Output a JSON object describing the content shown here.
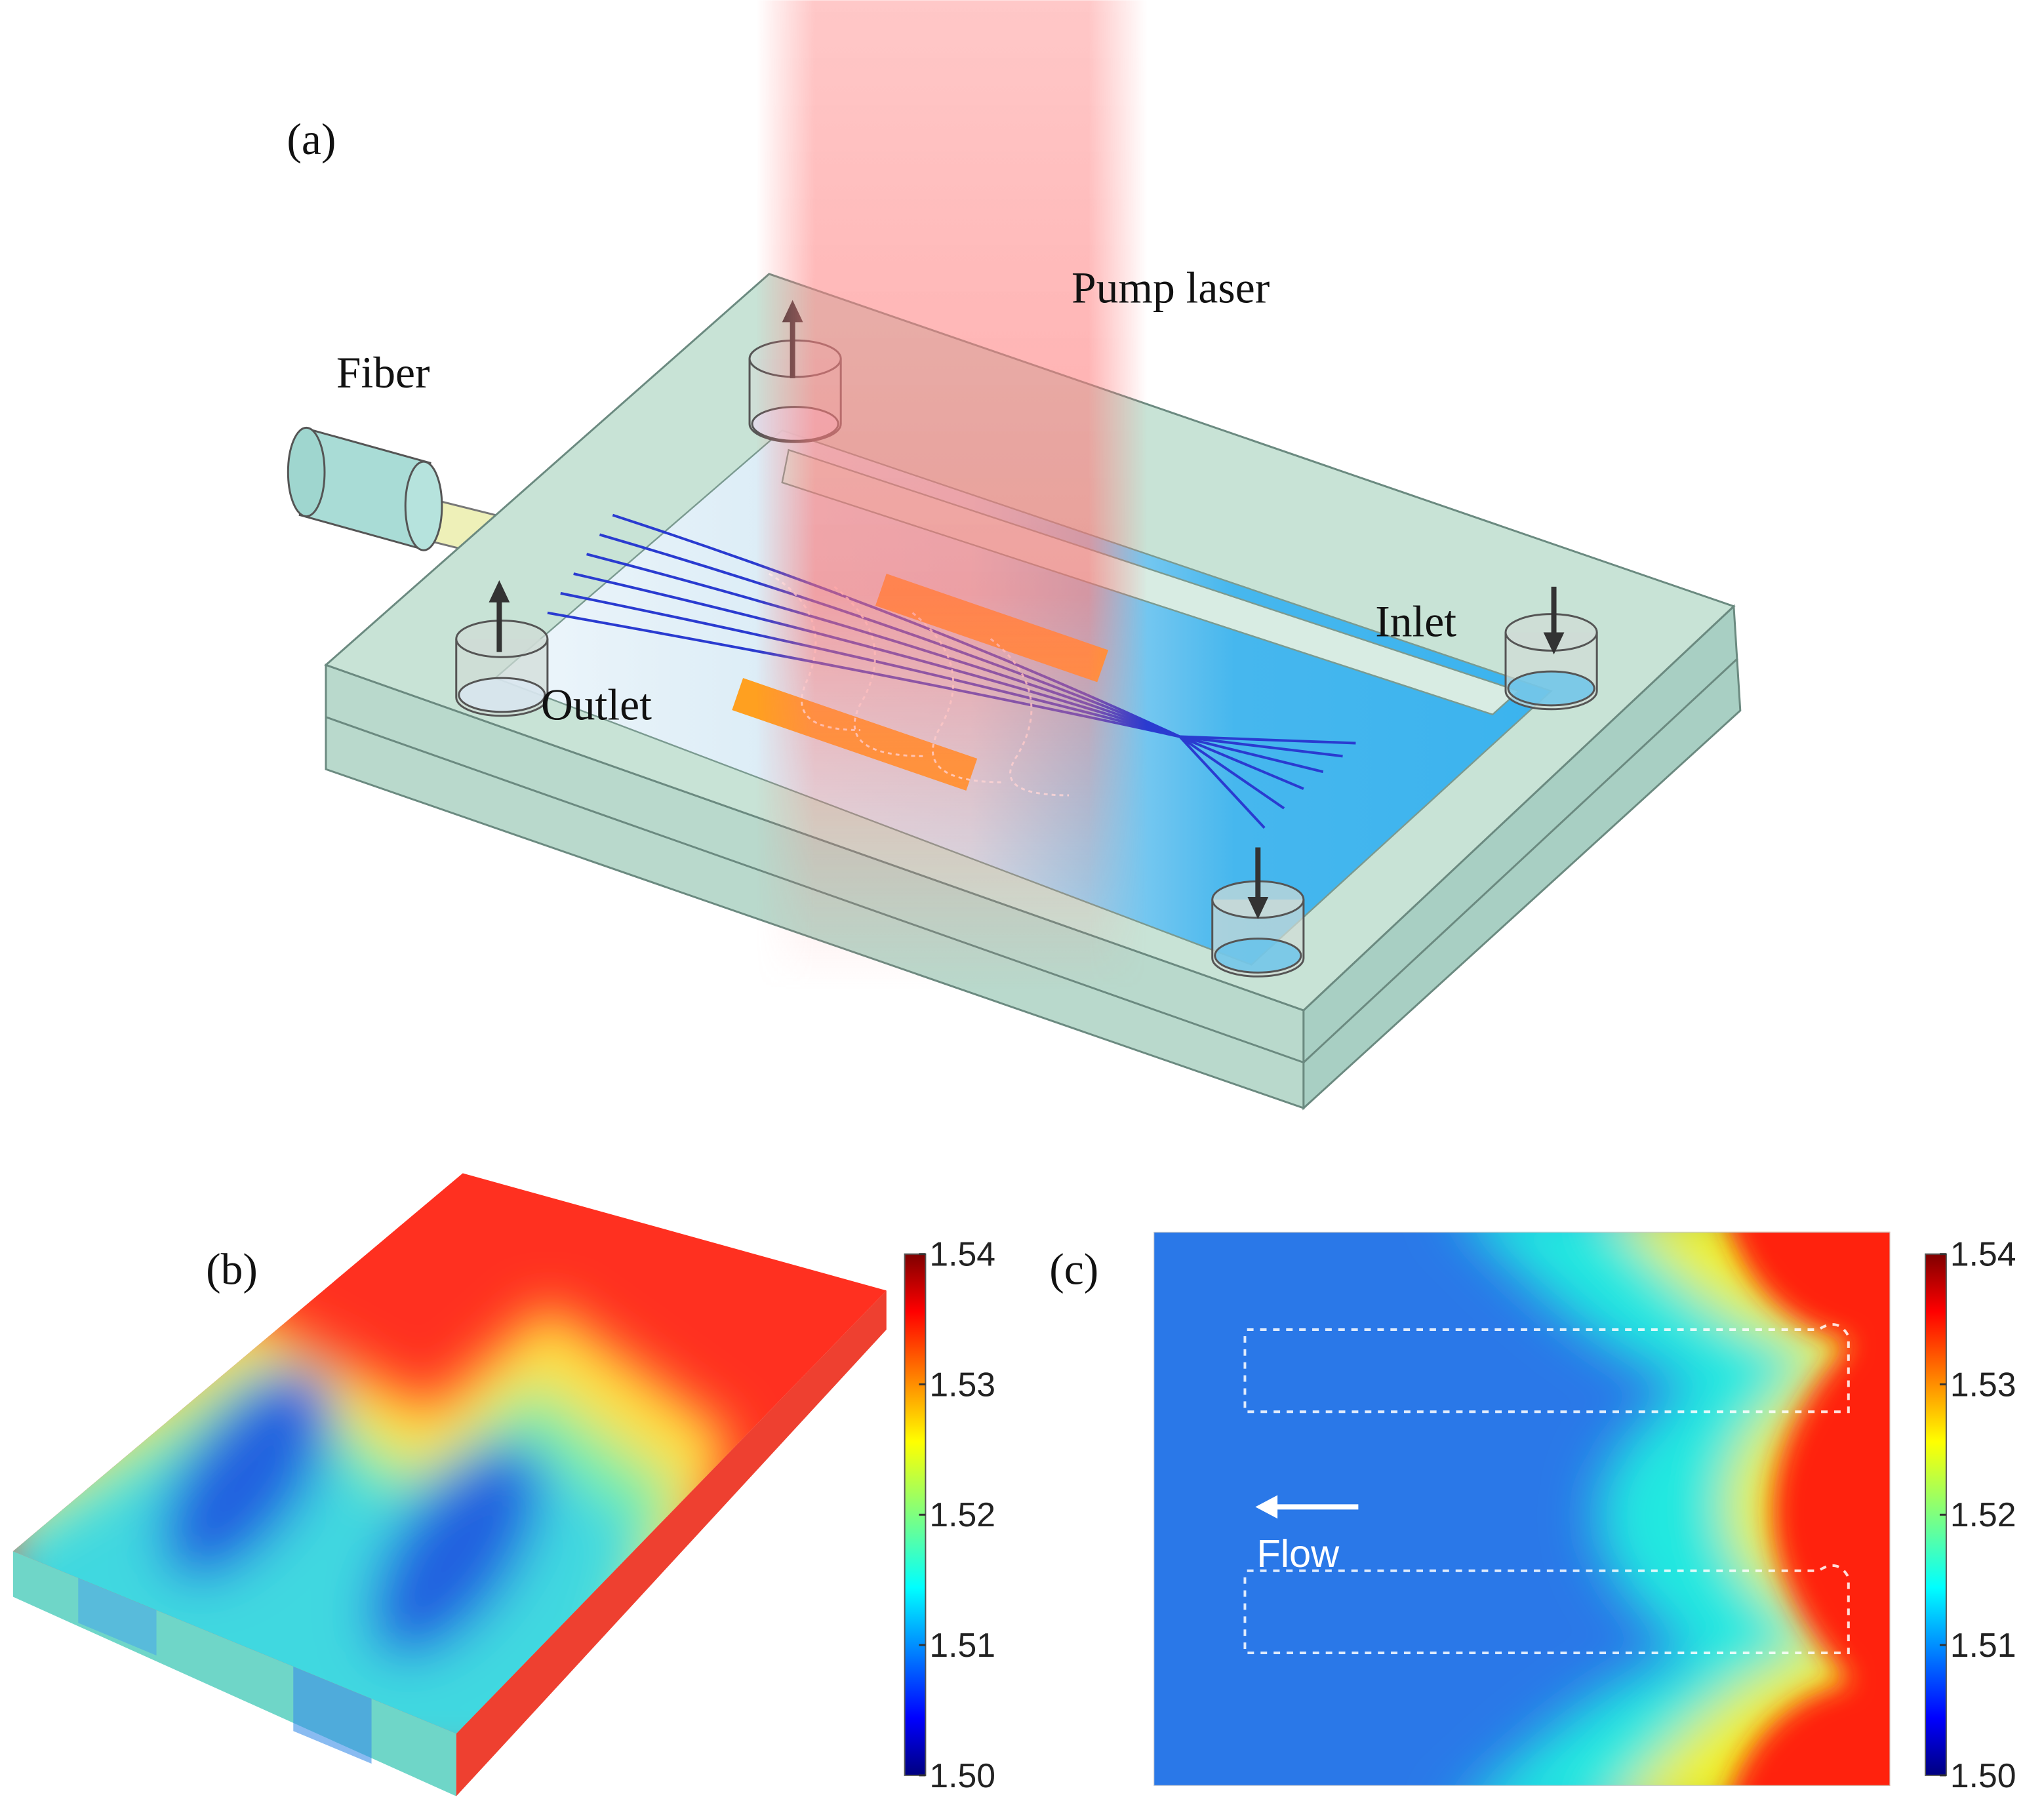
{
  "panel_a": {
    "label": "(a)",
    "pump_laser": "Pump laser",
    "fiber": "Fiber",
    "inlet": "Inlet",
    "outlet": "Outlet"
  },
  "panel_b": {
    "label": "(b)",
    "colorbar": {
      "range": [
        1.5,
        1.54
      ],
      "ticks": [
        1.54,
        1.53,
        1.52,
        1.51,
        {
          "value": 1.5,
          "label": "1.50"
        }
      ]
    }
  },
  "panel_c": {
    "label": "(c)",
    "flow_label": "Flow",
    "colorbar": {
      "range": [
        1.5,
        1.54
      ],
      "ticks": [
        1.54,
        1.53,
        1.52,
        1.51,
        {
          "value": 1.5,
          "label": "1.50"
        }
      ]
    }
  }
}
